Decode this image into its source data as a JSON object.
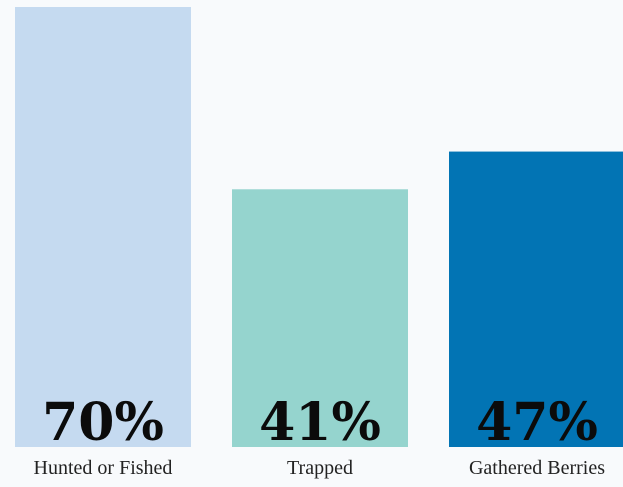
{
  "chart_data": {
    "type": "bar",
    "title": "",
    "xlabel": "",
    "ylabel": "",
    "ylim": [
      0,
      70
    ],
    "grid": false,
    "legend": "none",
    "categories": [
      "Hunted or Fished",
      "Trapped",
      "Gathered Berries"
    ],
    "values": [
      70,
      41,
      47
    ],
    "value_labels": [
      "70%",
      "41%",
      "47%"
    ],
    "colors": [
      "#c5daf0",
      "#95d4ce",
      "#0274b4"
    ]
  }
}
